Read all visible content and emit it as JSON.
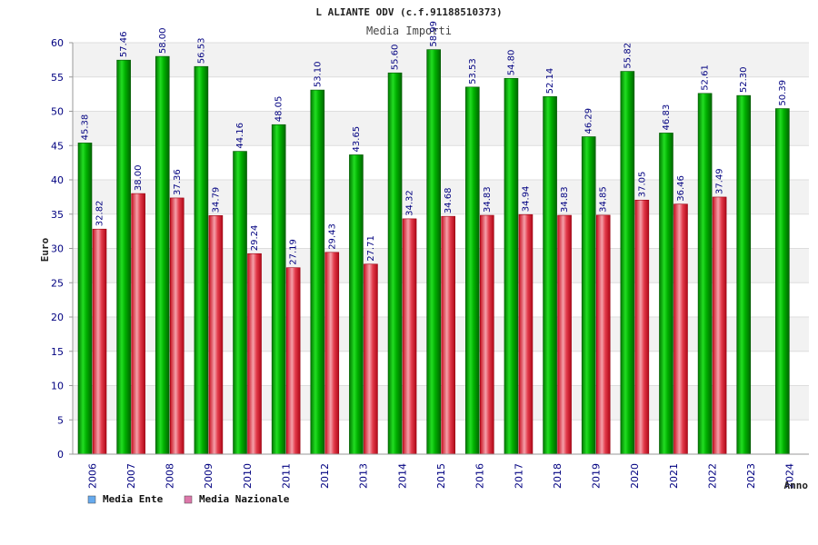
{
  "chart_data": {
    "type": "bar",
    "title": "L ALIANTE ODV (c.f.91188510373)",
    "subtitle": "Media Importi",
    "xlabel": "Anno",
    "ylabel": "Euro",
    "ylim": [
      0,
      60
    ],
    "yticks": [
      "0",
      "5",
      "10",
      "15",
      "20",
      "25",
      "30",
      "35",
      "40",
      "45",
      "50",
      "55",
      "60"
    ],
    "categories": [
      "2006",
      "2007",
      "2008",
      "2009",
      "2010",
      "2011",
      "2012",
      "2013",
      "2014",
      "2015",
      "2016",
      "2017",
      "2018",
      "2019",
      "2020",
      "2021",
      "2022",
      "2023",
      "2024"
    ],
    "series": [
      {
        "name": "Media Ente",
        "color": "#00aa00",
        "legend_color": "#66aaee",
        "values": [
          45.38,
          57.46,
          58.0,
          56.53,
          44.16,
          48.05,
          53.1,
          43.65,
          55.6,
          58.99,
          53.53,
          54.8,
          52.14,
          46.29,
          55.82,
          46.83,
          52.61,
          52.3,
          50.39
        ],
        "labels": [
          "45.38",
          "57.46",
          "58.00",
          "56.53",
          "44.16",
          "48.05",
          "53.10",
          "43.65",
          "55.60",
          "58.99",
          "53.53",
          "54.80",
          "52.14",
          "46.29",
          "55.82",
          "46.83",
          "52.61",
          "52.30",
          "50.39"
        ]
      },
      {
        "name": "Media Nazionale",
        "color": "#dd2233",
        "legend_color": "#dd77aa",
        "values": [
          32.82,
          38.0,
          37.36,
          34.79,
          29.24,
          27.19,
          29.43,
          27.71,
          34.32,
          34.68,
          34.83,
          34.94,
          34.83,
          34.85,
          37.05,
          36.46,
          37.49,
          null,
          null
        ],
        "labels": [
          "32.82",
          "38.00",
          "37.36",
          "34.79",
          "29.24",
          "27.19",
          "29.43",
          "27.71",
          "34.32",
          "34.68",
          "34.83",
          "34.94",
          "34.83",
          "34.85",
          "37.05",
          "36.46",
          "37.49",
          null,
          null
        ]
      }
    ],
    "legend": "bottom-left",
    "grid": true
  }
}
